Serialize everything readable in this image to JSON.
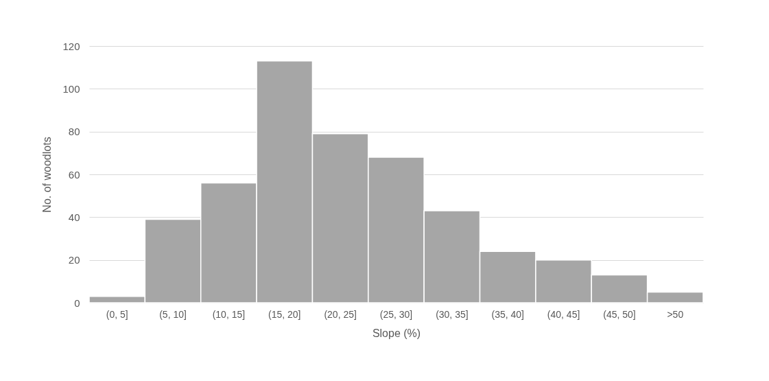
{
  "chart_data": {
    "type": "bar",
    "xlabel": "Slope (%)",
    "ylabel": "No. of woodlots",
    "categories": [
      "(0, 5]",
      "(5, 10]",
      "(10, 15]",
      "(15, 20]",
      "(20, 25]",
      "(25, 30]",
      "(30, 35]",
      "(35, 40]",
      "(40, 45]",
      "(45, 50]",
      ">50"
    ],
    "values": [
      3,
      39,
      56,
      113,
      79,
      68,
      43,
      24,
      20,
      13,
      5
    ],
    "color": "#a6a6a6",
    "ylim": [
      0,
      120
    ],
    "yticks": [
      0,
      20,
      40,
      60,
      80,
      100,
      120
    ],
    "grid": "y"
  }
}
